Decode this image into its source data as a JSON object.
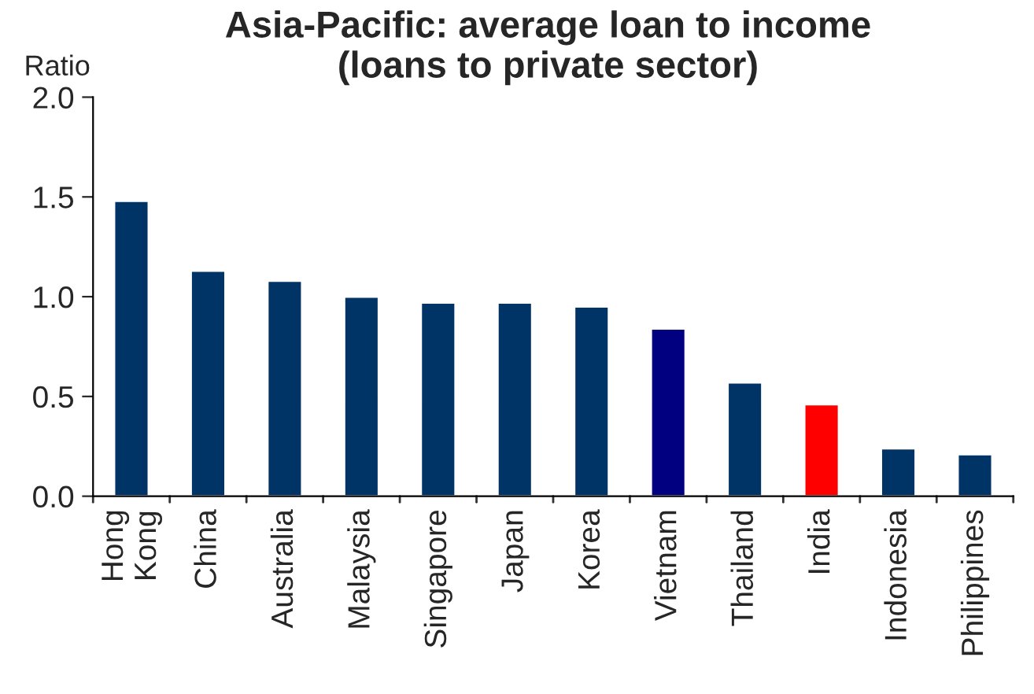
{
  "chart_data": {
    "type": "bar",
    "title": "Asia-Pacific: average loan to income\n(loans to private sector)",
    "ylabel": "Ratio",
    "categories": [
      "Hong\nKong",
      "China",
      "Australia",
      "Malaysia",
      "Singapore",
      "Japan",
      "Korea",
      "Vietnam",
      "Thailand",
      "India",
      "Indonesia",
      "Philippines"
    ],
    "values": [
      1.48,
      1.13,
      1.08,
      1.0,
      0.97,
      0.97,
      0.95,
      0.84,
      0.57,
      0.46,
      0.24,
      0.21
    ],
    "colors": [
      "#003366",
      "#003366",
      "#003366",
      "#003366",
      "#003366",
      "#003366",
      "#003366",
      "#000080",
      "#003366",
      "#ff0000",
      "#003366",
      "#003366"
    ],
    "ylim": [
      0,
      2.0
    ],
    "yticks": [
      {
        "value": 0,
        "label": "0.0"
      },
      {
        "value": 0.5,
        "label": "0.5"
      },
      {
        "value": 1.0,
        "label": "1.0"
      },
      {
        "value": 1.5,
        "label": "1.5"
      },
      {
        "value": 2.0,
        "label": "2.0"
      }
    ],
    "grid": false
  }
}
